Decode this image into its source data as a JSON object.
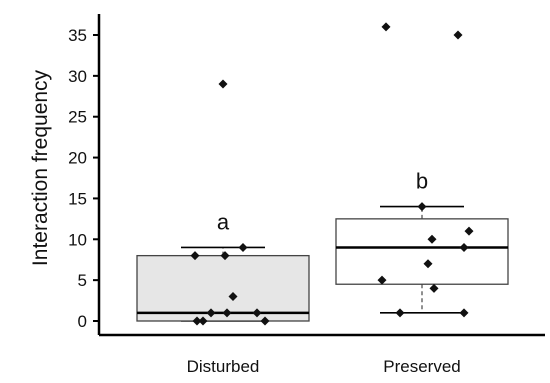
{
  "chart_data": {
    "type": "box",
    "ylabel": "Interaction frequency",
    "xlabel": "",
    "title": "",
    "ylim": [
      0,
      36
    ],
    "yticks": [
      0,
      5,
      10,
      15,
      20,
      25,
      30,
      35
    ],
    "grid": false,
    "categories": [
      "Disturbed",
      "Preserved"
    ],
    "groups": [
      {
        "name": "Disturbed",
        "letter": "a",
        "fill": "#e6e6e6",
        "whisker_low": 0,
        "q1": 0,
        "median": 1,
        "q3": 8,
        "whisker_high": 9,
        "outliers": [
          29
        ],
        "points": [
          0,
          0,
          1,
          1,
          1,
          0,
          3,
          8,
          8,
          9
        ]
      },
      {
        "name": "Preserved",
        "letter": "b",
        "fill": "#ffffff",
        "whisker_low": 1,
        "q1": 4.5,
        "median": 9,
        "q3": 12.5,
        "whisker_high": 14,
        "outliers": [
          36,
          35
        ],
        "points": [
          1,
          1,
          4,
          5,
          7,
          9,
          10,
          11,
          14
        ]
      }
    ]
  }
}
